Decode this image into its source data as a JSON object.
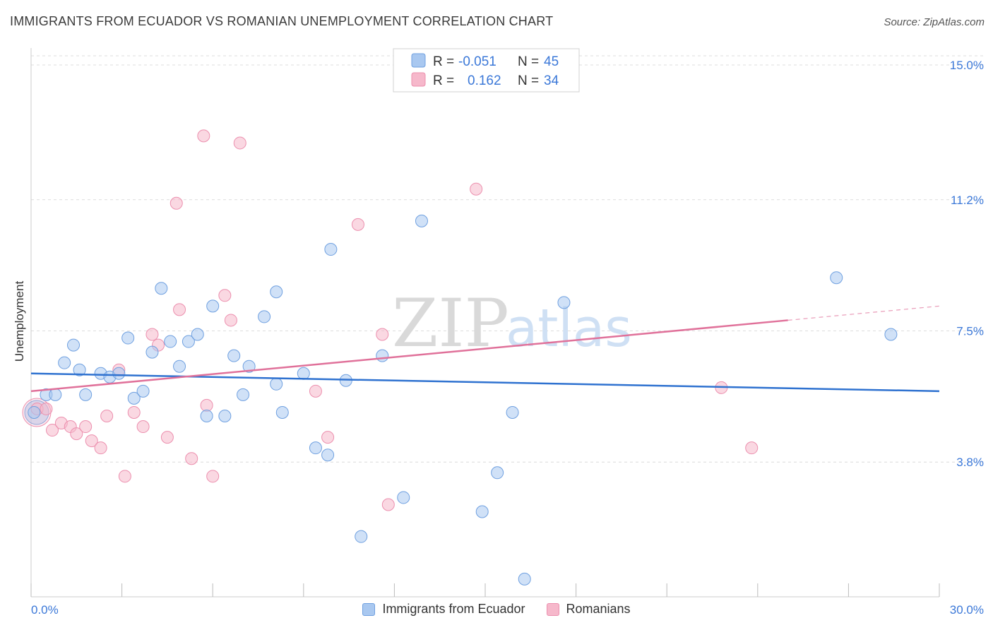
{
  "title": "IMMIGRANTS FROM ECUADOR VS ROMANIAN UNEMPLOYMENT CORRELATION CHART",
  "source": "Source: ZipAtlas.com",
  "watermark": {
    "bold": "ZIP",
    "light": "atlas"
  },
  "colors": {
    "blue_fill": "#a9c8f0",
    "blue_stroke": "#6fa0e0",
    "blue_line": "#2f72d0",
    "pink_fill": "#f6b8cb",
    "pink_stroke": "#ec8fae",
    "pink_line": "#e0719a",
    "axis_text": "#3b78d8",
    "grid": "#dcdcdc"
  },
  "legend": [
    {
      "r_label": "R =",
      "r_value": "-0.051",
      "n_label": "N =",
      "n_value": "45"
    },
    {
      "r_label": "R =",
      "r_value": "0.162",
      "n_label": "N =",
      "n_value": "34"
    }
  ],
  "chart_data": {
    "type": "scatter",
    "title": "IMMIGRANTS FROM ECUADOR VS ROMANIAN UNEMPLOYMENT CORRELATION CHART",
    "xlabel": "",
    "ylabel": "Unemployment",
    "xlim": [
      0,
      30
    ],
    "ylim": [
      0,
      15.5
    ],
    "x_tick_labels": [
      "0.0%",
      "30.0%"
    ],
    "y_ticks": [
      3.8,
      7.5,
      11.2,
      15.0
    ],
    "y_tick_labels": [
      "3.8%",
      "7.5%",
      "11.2%",
      "15.0%"
    ],
    "grid": true,
    "legend_position": "top-center",
    "series": [
      {
        "name": "Immigrants from Ecuador",
        "color": "#a9c8f0",
        "trend": {
          "x": [
            0,
            30
          ],
          "y": [
            6.3,
            5.8
          ],
          "dashed_from": null
        },
        "points": [
          [
            0.1,
            5.2
          ],
          [
            0.5,
            5.7
          ],
          [
            0.8,
            5.7
          ],
          [
            1.1,
            6.6
          ],
          [
            1.4,
            7.1
          ],
          [
            1.6,
            6.4
          ],
          [
            1.8,
            5.7
          ],
          [
            2.3,
            6.3
          ],
          [
            2.6,
            6.2
          ],
          [
            2.9,
            6.3
          ],
          [
            3.2,
            7.3
          ],
          [
            3.4,
            5.6
          ],
          [
            3.7,
            5.8
          ],
          [
            4.0,
            6.9
          ],
          [
            4.3,
            8.7
          ],
          [
            4.6,
            7.2
          ],
          [
            4.9,
            6.5
          ],
          [
            5.2,
            7.2
          ],
          [
            5.5,
            7.4
          ],
          [
            5.8,
            5.1
          ],
          [
            6.0,
            8.2
          ],
          [
            6.4,
            5.1
          ],
          [
            6.7,
            6.8
          ],
          [
            7.0,
            5.7
          ],
          [
            7.2,
            6.5
          ],
          [
            7.7,
            7.9
          ],
          [
            8.1,
            8.6
          ],
          [
            8.1,
            6.0
          ],
          [
            8.3,
            5.2
          ],
          [
            9.0,
            6.3
          ],
          [
            9.4,
            4.2
          ],
          [
            9.8,
            4.0
          ],
          [
            9.9,
            9.8
          ],
          [
            10.4,
            6.1
          ],
          [
            10.9,
            1.7
          ],
          [
            11.6,
            6.8
          ],
          [
            12.3,
            2.8
          ],
          [
            12.9,
            10.6
          ],
          [
            14.9,
            2.4
          ],
          [
            15.4,
            3.5
          ],
          [
            15.9,
            5.2
          ],
          [
            16.3,
            0.5
          ],
          [
            17.6,
            8.3
          ],
          [
            26.6,
            9.0
          ],
          [
            28.4,
            7.4
          ]
        ]
      },
      {
        "name": "Romanians",
        "color": "#f6b8cb",
        "trend": {
          "x": [
            0,
            30
          ],
          "y": [
            5.8,
            8.2
          ],
          "dashed_from": 25.0
        },
        "points": [
          [
            0.2,
            5.3
          ],
          [
            0.5,
            5.3
          ],
          [
            0.7,
            4.7
          ],
          [
            1.0,
            4.9
          ],
          [
            1.3,
            4.8
          ],
          [
            1.5,
            4.6
          ],
          [
            1.8,
            4.8
          ],
          [
            2.0,
            4.4
          ],
          [
            2.3,
            4.2
          ],
          [
            2.5,
            5.1
          ],
          [
            2.9,
            6.4
          ],
          [
            3.1,
            3.4
          ],
          [
            3.4,
            5.2
          ],
          [
            3.7,
            4.8
          ],
          [
            4.0,
            7.4
          ],
          [
            4.2,
            7.1
          ],
          [
            4.5,
            4.5
          ],
          [
            4.8,
            11.1
          ],
          [
            4.9,
            8.1
          ],
          [
            5.3,
            3.9
          ],
          [
            5.7,
            13.0
          ],
          [
            5.8,
            5.4
          ],
          [
            6.0,
            3.4
          ],
          [
            6.4,
            8.5
          ],
          [
            6.6,
            7.8
          ],
          [
            6.9,
            12.8
          ],
          [
            9.4,
            5.8
          ],
          [
            9.8,
            4.5
          ],
          [
            10.8,
            10.5
          ],
          [
            11.6,
            7.4
          ],
          [
            11.8,
            2.6
          ],
          [
            14.7,
            11.5
          ],
          [
            22.8,
            5.9
          ],
          [
            23.8,
            4.2
          ]
        ]
      }
    ]
  }
}
